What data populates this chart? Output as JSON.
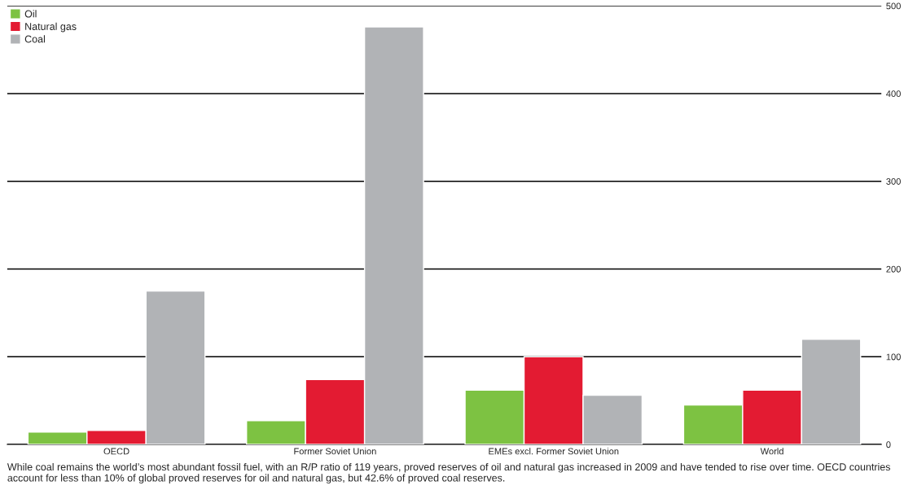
{
  "chart_data": {
    "type": "bar",
    "categories": [
      "OECD",
      "Former Soviet Union",
      "EMEs excl. Former Soviet Union",
      "World"
    ],
    "series": [
      {
        "name": "Oil",
        "color": "#7dc242",
        "values": [
          14,
          27,
          62,
          45
        ]
      },
      {
        "name": "Natural gas",
        "color": "#e31b32",
        "values": [
          16,
          74,
          100,
          62
        ]
      },
      {
        "name": "Coal",
        "color": "#b1b3b6",
        "values": [
          175,
          476,
          56,
          120
        ]
      }
    ],
    "ylim": [
      0,
      500
    ],
    "yticks": [
      0,
      100,
      200,
      300,
      400,
      500
    ],
    "grid": "y",
    "legend": "top left",
    "annotations": [
      "While coal remains the world’s most abundant fossil fuel, with an R/P ratio of 119 years, proved reserves of oil and natural gas increased in 2009 and have tended to rise over time. OECD countries account for less than 10% of global proved reserves for oil and natural gas, but 42.6% of proved coal reserves."
    ]
  }
}
